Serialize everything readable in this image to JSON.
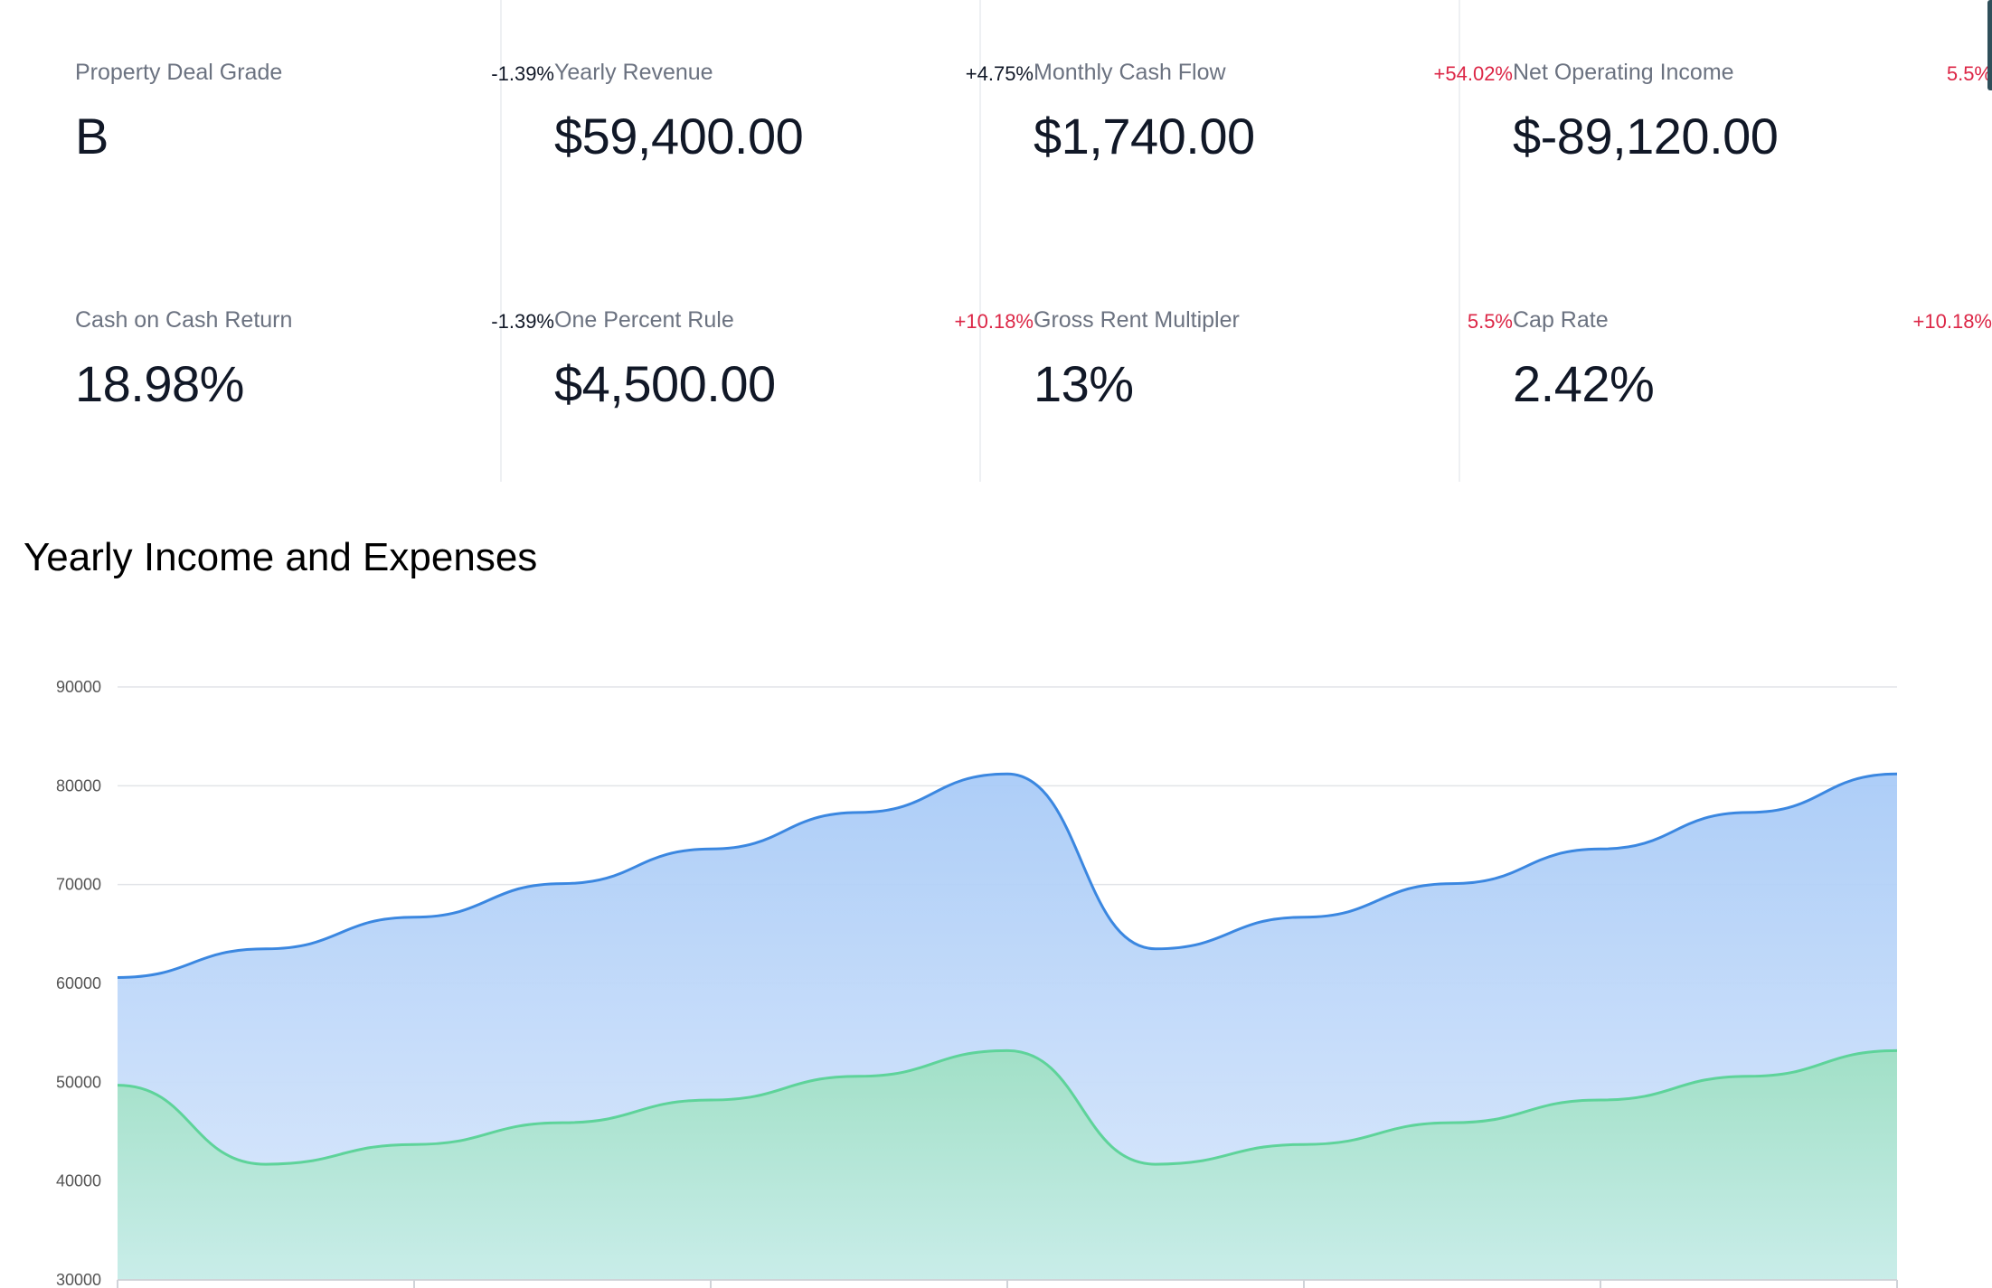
{
  "stats": [
    {
      "label": "Property Deal Grade",
      "change": "-1.39%",
      "change_color": "#111827",
      "value": "B"
    },
    {
      "label": "Yearly Revenue",
      "change": "+4.75%",
      "change_color": "#111827",
      "value": "$59,400.00"
    },
    {
      "label": "Monthly Cash Flow",
      "change": "+54.02%",
      "change_color": "#dc2646",
      "value": "$1,740.00"
    },
    {
      "label": "Net Operating Income",
      "change": "5.5%",
      "change_color": "#dc2646",
      "value": "$-89,120.00"
    },
    {
      "label": "Cash on Cash Return",
      "change": "-1.39%",
      "change_color": "#111827",
      "value": "18.98%"
    },
    {
      "label": "One Percent Rule",
      "change": "+10.18%",
      "change_color": "#dc2646",
      "value": "$4,500.00"
    },
    {
      "label": "Gross Rent Multipler",
      "change": "5.5%",
      "change_color": "#dc2646",
      "value": "13%"
    },
    {
      "label": "Cap Rate",
      "change": "+10.18%",
      "change_color": "#dc2646",
      "value": "2.42%"
    }
  ],
  "chart_title": "Yearly Income and Expenses",
  "chart_data": {
    "type": "area",
    "title": "Yearly Income and Expenses",
    "xlabel": "",
    "ylabel": "",
    "ylim": [
      30000,
      90000
    ],
    "yticks": [
      90000,
      80000,
      70000,
      60000,
      50000,
      40000,
      30000
    ],
    "grid": true,
    "x": [
      0,
      1,
      2,
      3,
      4,
      5,
      6,
      7,
      8,
      9,
      10,
      11,
      12
    ],
    "series": [
      {
        "color": "#3b87e0",
        "fill_top": "#a9cbf7",
        "fill_bottom": "#dbe9fc",
        "values": [
          60600,
          63500,
          66700,
          70100,
          73600,
          77300,
          81200,
          63500,
          66700,
          70100,
          73600,
          77300,
          81200
        ]
      },
      {
        "color": "#5ed39a",
        "fill_top": "#9fe0c4",
        "fill_bottom": "#c8ede8",
        "values": [
          49700,
          41700,
          43700,
          45900,
          48200,
          50600,
          53200,
          41700,
          43700,
          45900,
          48200,
          50600,
          53200
        ]
      }
    ]
  }
}
